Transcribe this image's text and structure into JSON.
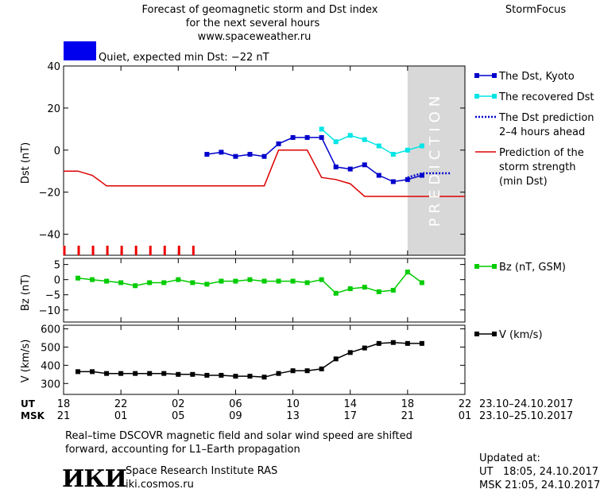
{
  "header": {
    "title_line1": "Forecast of geomagnetic storm and Dst index",
    "title_line2": "for the next several hours",
    "title_line3": "www.spaceweather.ru",
    "brand": "StormFocus"
  },
  "status": {
    "color": "#0000ee",
    "text": "Quiet, expected min Dst: −22 nT"
  },
  "prediction_label": "PREDICTION",
  "time_axis": {
    "ut_label": "UT",
    "msk_label": "MSK",
    "ut_ticks": [
      "18",
      "22",
      "02",
      "06",
      "10",
      "14",
      "18",
      "22"
    ],
    "msk_ticks": [
      "21",
      "01",
      "05",
      "09",
      "13",
      "17",
      "21",
      "01"
    ],
    "ut_range": "23.10–24.10.2017",
    "msk_range": "23.10–25.10.2017"
  },
  "footer": {
    "note_line1": "Real–time DSCOVR magnetic field and solar wind speed are shifted",
    "note_line2": "forward, accounting for L1–Earth propagation",
    "logo_text": "ИКИ",
    "institute": "Space Research Institute RAS",
    "site": "iki.cosmos.ru",
    "updated_title": "Updated at:",
    "updated_ut": "UT   18:05, 24.10.2017",
    "updated_msk": "MSK 21:05, 24.10.2017"
  },
  "colors": {
    "dst_kyoto": "#0000cc",
    "dst_recovered": "#00e5e5",
    "dst_prediction": "#0000cc",
    "storm_strength": "#dd0000",
    "bz": "#00cc00",
    "v": "#000000",
    "prediction_band": "#d8d8d8",
    "ticks_red": "#ee0000"
  },
  "chart_data": [
    {
      "type": "line",
      "ylabel": "Dst (nT)",
      "ylim": [
        -50,
        40
      ],
      "yticks": [
        "40",
        "20",
        "0",
        "−20",
        "−40"
      ],
      "ytick_values": [
        40,
        20,
        0,
        -20,
        -40
      ],
      "xlim_hours": [
        0,
        28
      ],
      "series": [
        {
          "name": "The Dst, Kyoto",
          "style": "line-square",
          "x": [
            10,
            11,
            12,
            13,
            14,
            15,
            16,
            17,
            18,
            19,
            20,
            21,
            22,
            23,
            24,
            25
          ],
          "y": [
            -2,
            -1,
            -3,
            -2,
            -3,
            3,
            6,
            6,
            6,
            -8,
            -9,
            -7,
            -12,
            -15,
            -14,
            -12
          ]
        },
        {
          "name": "The recovered Dst",
          "style": "line-square",
          "x": [
            18,
            19,
            20,
            21,
            22,
            23,
            24,
            25
          ],
          "y": [
            10,
            4,
            7,
            5,
            2,
            -2,
            0,
            2
          ]
        },
        {
          "name": "The Dst prediction\n2–4 hours ahead",
          "style": "dotted",
          "x": [
            24,
            25,
            26,
            27
          ],
          "y": [
            -13,
            -11,
            -11,
            -11
          ]
        },
        {
          "name": "Prediction of the\nstorm strength\n(min Dst)",
          "style": "line",
          "x": [
            0,
            1,
            2,
            3,
            4,
            5,
            6,
            7,
            8,
            9,
            10,
            11,
            12,
            13,
            14,
            15,
            16,
            17,
            18,
            19,
            20,
            21,
            22,
            23,
            24,
            25,
            26,
            27,
            28
          ],
          "y": [
            -10,
            -10,
            -12,
            -17,
            -17,
            -17,
            -17,
            -17,
            -17,
            -17,
            -17,
            -17,
            -17,
            -17,
            -17,
            0,
            0,
            0,
            -13,
            -14,
            -16,
            -22,
            -22,
            -22,
            -22,
            -22,
            -22,
            -22,
            -22
          ]
        }
      ],
      "prediction_band_hours": [
        24,
        28
      ],
      "storm_tick_hours": [
        0,
        1,
        2,
        3,
        4,
        5,
        6,
        7,
        8,
        9
      ]
    },
    {
      "type": "line",
      "ylabel": "Bz (nT)",
      "ylim": [
        -14,
        7
      ],
      "yticks": [
        "5",
        "0",
        "−5",
        "−10"
      ],
      "ytick_values": [
        5,
        0,
        -5,
        -10
      ],
      "xlim_hours": [
        0,
        28
      ],
      "series": [
        {
          "name": "Bz (nT, GSM)",
          "x": [
            1,
            2,
            3,
            4,
            5,
            6,
            7,
            8,
            9,
            10,
            11,
            12,
            13,
            14,
            15,
            16,
            17,
            18,
            19,
            20,
            21,
            22,
            23,
            24,
            25
          ],
          "y": [
            0.5,
            0,
            -0.5,
            -1,
            -2,
            -1,
            -1,
            0,
            -1,
            -1.5,
            -0.5,
            -0.5,
            0,
            -0.5,
            -0.5,
            -0.5,
            -1,
            0,
            -4.5,
            -3,
            -2.5,
            -4,
            -3.5,
            2.5,
            -1
          ]
        }
      ]
    },
    {
      "type": "line",
      "ylabel": "V (km/s)",
      "ylim": [
        240,
        620
      ],
      "yticks": [
        "600",
        "500",
        "400",
        "300"
      ],
      "ytick_values": [
        600,
        500,
        400,
        300
      ],
      "xlim_hours": [
        0,
        28
      ],
      "series": [
        {
          "name": "V (km/s)",
          "x": [
            1,
            2,
            3,
            4,
            5,
            6,
            7,
            8,
            9,
            10,
            11,
            12,
            13,
            14,
            15,
            16,
            17,
            18,
            19,
            20,
            21,
            22,
            23,
            24,
            25
          ],
          "y": [
            365,
            365,
            355,
            355,
            355,
            355,
            355,
            350,
            350,
            345,
            345,
            340,
            340,
            335,
            355,
            370,
            370,
            380,
            435,
            470,
            495,
            520,
            525,
            520,
            520
          ]
        }
      ]
    }
  ]
}
